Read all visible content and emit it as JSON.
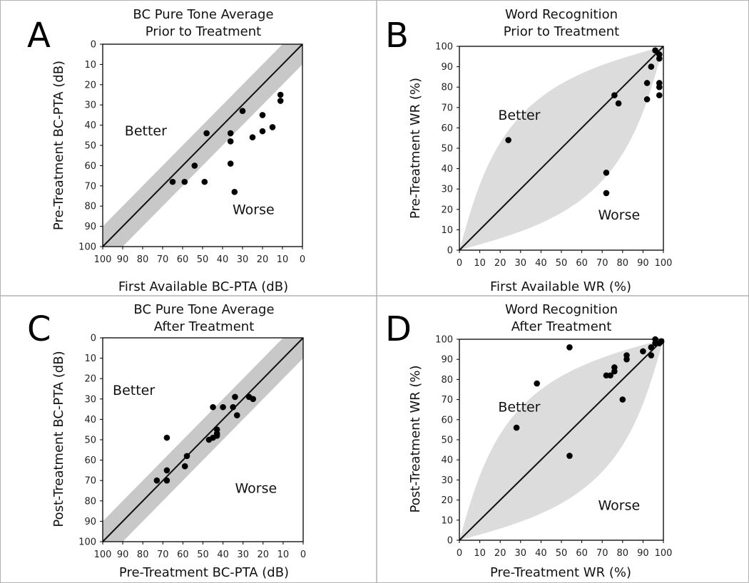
{
  "chart_data": [
    {
      "id": "A",
      "type": "scatter",
      "panel_label": "A",
      "title": [
        "BC Pure Tone Average",
        "Prior to Treatment"
      ],
      "xlabel": "First Available BC-PTA (dB)",
      "ylabel": "Pre-Treatment  BC-PTA (dB)",
      "xlim": [
        100,
        0
      ],
      "ylim": [
        100,
        0
      ],
      "xticks": [
        "100",
        "90",
        "80",
        "70",
        "60",
        "50",
        "40",
        "30",
        "20",
        "10",
        "0"
      ],
      "yticks": [
        "0",
        "10",
        "20",
        "30",
        "40",
        "50",
        "60",
        "70",
        "80",
        "90",
        "100"
      ],
      "band": "linear",
      "band_halfwidth": 10,
      "band_color": "#c8c8c8",
      "annotations": [
        {
          "text": "Better",
          "x": 89,
          "y": 45
        },
        {
          "text": "Worse",
          "x": 35,
          "y": 84
        }
      ],
      "points": [
        [
          65,
          68
        ],
        [
          59,
          68
        ],
        [
          54,
          60
        ],
        [
          49,
          68
        ],
        [
          48,
          44
        ],
        [
          36,
          44
        ],
        [
          36,
          48
        ],
        [
          36,
          59
        ],
        [
          34,
          73
        ],
        [
          30,
          33
        ],
        [
          25,
          46
        ],
        [
          20,
          35
        ],
        [
          20,
          43
        ],
        [
          15,
          41
        ],
        [
          11,
          25
        ],
        [
          11,
          28
        ]
      ]
    },
    {
      "id": "B",
      "type": "scatter",
      "panel_label": "B",
      "title": [
        "Word Recognition",
        "Prior to Treatment"
      ],
      "xlabel": "First Available WR (%)",
      "ylabel": "Pre-Treatment WR (%)",
      "xlim": [
        0,
        100
      ],
      "ylim": [
        0,
        100
      ],
      "xticks": [
        "0",
        "10",
        "20",
        "30",
        "40",
        "50",
        "60",
        "70",
        "80",
        "90",
        "100"
      ],
      "yticks": [
        "0",
        "10",
        "20",
        "30",
        "40",
        "50",
        "60",
        "70",
        "80",
        "90",
        "100"
      ],
      "band": "lens",
      "band_halfwidth": 18,
      "band_color": "#dcdcdc",
      "annotations": [
        {
          "text": "Better",
          "x": 19,
          "y": 64
        },
        {
          "text": "Worse",
          "x": 68,
          "y": 15
        }
      ],
      "points": [
        [
          24,
          54
        ],
        [
          72,
          38
        ],
        [
          72,
          28
        ],
        [
          76,
          76
        ],
        [
          78,
          72
        ],
        [
          92,
          82
        ],
        [
          92,
          74
        ],
        [
          94,
          90
        ],
        [
          96,
          98
        ],
        [
          98,
          96
        ],
        [
          98,
          94
        ],
        [
          98,
          82
        ],
        [
          98,
          80
        ],
        [
          98,
          76
        ]
      ]
    },
    {
      "id": "C",
      "type": "scatter",
      "panel_label": "C",
      "title": [
        "BC Pure Tone Average",
        "After Treatment"
      ],
      "xlabel": "Pre-Treatment BC-PTA (dB)",
      "ylabel": "Post-Treatment BC-PTA (dB)",
      "xlim": [
        100,
        0
      ],
      "ylim": [
        100,
        0
      ],
      "xticks": [
        "100",
        "90",
        "80",
        "70",
        "60",
        "50",
        "40",
        "30",
        "20",
        "10",
        "0"
      ],
      "yticks": [
        "0",
        "10",
        "20",
        "30",
        "40",
        "50",
        "60",
        "70",
        "80",
        "90",
        "100"
      ],
      "band": "linear",
      "band_halfwidth": 10,
      "band_color": "#c8c8c8",
      "annotations": [
        {
          "text": "Better",
          "x": 95,
          "y": 28
        },
        {
          "text": "Worse",
          "x": 34,
          "y": 76
        }
      ],
      "points": [
        [
          73,
          70
        ],
        [
          68,
          70
        ],
        [
          68,
          65
        ],
        [
          68,
          49
        ],
        [
          59,
          63
        ],
        [
          58,
          58
        ],
        [
          47,
          50
        ],
        [
          45,
          49
        ],
        [
          43,
          48
        ],
        [
          43,
          47
        ],
        [
          43,
          45
        ],
        [
          45,
          34
        ],
        [
          40,
          34
        ],
        [
          35,
          34
        ],
        [
          34,
          29
        ],
        [
          33,
          38
        ],
        [
          27,
          29
        ],
        [
          25,
          30
        ]
      ]
    },
    {
      "id": "D",
      "type": "scatter",
      "panel_label": "D",
      "title": [
        "Word Recognition",
        "After Treatment"
      ],
      "xlabel": "Pre-Treatment WR (%)",
      "ylabel": "Post-Treatment WR (%)",
      "xlim": [
        0,
        100
      ],
      "ylim": [
        0,
        100
      ],
      "xticks": [
        "0",
        "10",
        "20",
        "30",
        "40",
        "50",
        "60",
        "70",
        "80",
        "90",
        "100"
      ],
      "yticks": [
        "0",
        "10",
        "20",
        "30",
        "40",
        "50",
        "60",
        "70",
        "80",
        "90",
        "100"
      ],
      "band": "lens",
      "band_halfwidth": 18,
      "band_color": "#dcdcdc",
      "annotations": [
        {
          "text": "Better",
          "x": 19,
          "y": 64
        },
        {
          "text": "Worse",
          "x": 68,
          "y": 15
        }
      ],
      "points": [
        [
          28,
          56
        ],
        [
          38,
          78
        ],
        [
          54,
          96
        ],
        [
          54,
          42
        ],
        [
          72,
          82
        ],
        [
          74,
          82
        ],
        [
          76,
          84
        ],
        [
          76,
          86
        ],
        [
          80,
          70
        ],
        [
          82,
          92
        ],
        [
          82,
          90
        ],
        [
          90,
          94
        ],
        [
          94,
          96
        ],
        [
          94,
          92
        ],
        [
          96,
          98
        ],
        [
          96,
          100
        ],
        [
          98,
          98
        ],
        [
          99,
          99
        ]
      ]
    }
  ]
}
